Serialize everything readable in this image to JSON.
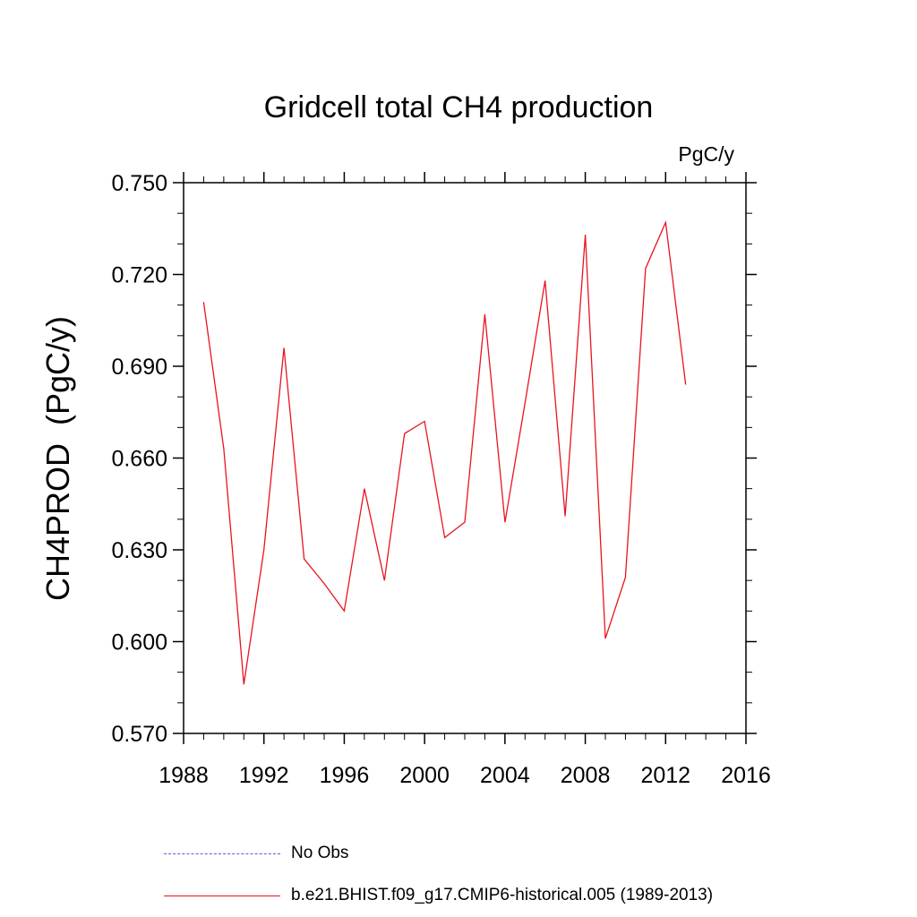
{
  "chart_data": {
    "type": "line",
    "title": "Gridcell total CH4 production",
    "units": "PgC/y",
    "ylabel": "CH4PROD  (PgC/y)",
    "xlabel": "",
    "xlim": [
      1988,
      2016
    ],
    "ylim": [
      0.57,
      0.75
    ],
    "xticks": [
      "1988",
      "1992",
      "1996",
      "2000",
      "2004",
      "2008",
      "2012",
      "2016"
    ],
    "yticks": [
      "0.570",
      "0.600",
      "0.630",
      "0.660",
      "0.690",
      "0.720",
      "0.750"
    ],
    "grid": false,
    "series": [
      {
        "name": "b.e21.BHIST.f09_g17.CMIP6-historical.005 (1989-2013)",
        "color": "#e8141e",
        "x": [
          1989,
          1990,
          1991,
          1992,
          1993,
          1994,
          1995,
          1996,
          1997,
          1998,
          1999,
          2000,
          2001,
          2002,
          2003,
          2004,
          2005,
          2006,
          2007,
          2008,
          2009,
          2010,
          2011,
          2012,
          2013
        ],
        "values": [
          0.711,
          0.663,
          0.586,
          0.63,
          0.696,
          0.627,
          0.619,
          0.61,
          0.65,
          0.62,
          0.668,
          0.672,
          0.634,
          0.639,
          0.707,
          0.639,
          0.678,
          0.718,
          0.641,
          0.733,
          0.601,
          0.621,
          0.722,
          0.737,
          0.684
        ]
      }
    ],
    "legend": {
      "position": "bottom",
      "items": [
        {
          "label": "No Obs",
          "color": "#5a5ad6",
          "style": "dashed"
        },
        {
          "label": "b.e21.BHIST.f09_g17.CMIP6-historical.005 (1989-2013)",
          "color": "#e8141e",
          "style": "solid"
        }
      ]
    }
  }
}
